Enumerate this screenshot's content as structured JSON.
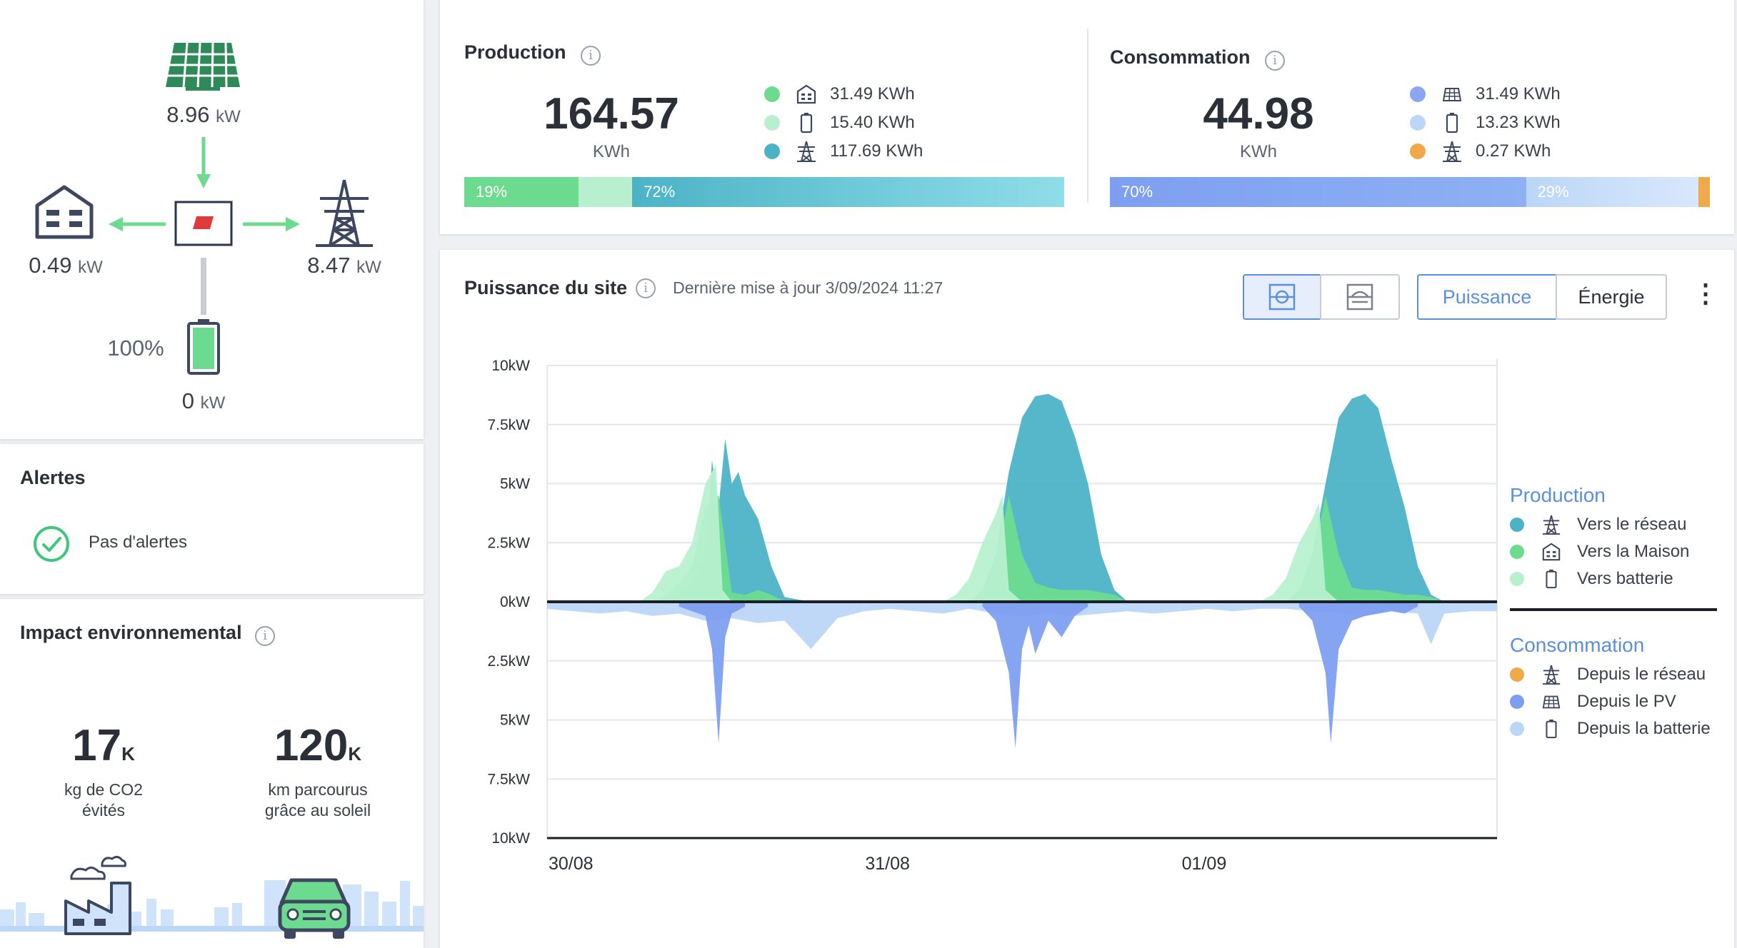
{
  "flow": {
    "solar_value": "8.96",
    "solar_unit": "kW",
    "house_value": "0.49",
    "house_unit": "kW",
    "grid_value": "8.47",
    "grid_unit": "kW",
    "battery_pct": "100%",
    "battery_value": "0",
    "battery_unit": "kW",
    "battery_level": 1.0
  },
  "alerts": {
    "title": "Alertes",
    "status": "Pas d'alertes"
  },
  "impact": {
    "title": "Impact environnemental",
    "info": "i",
    "co2_value": "17",
    "co2_suffix": "K",
    "co2_caption_1": "kg de CO2",
    "co2_caption_2": "évités",
    "km_value": "120",
    "km_suffix": "K",
    "km_caption_1": "km parcourus",
    "km_caption_2": "grâce au soleil"
  },
  "production": {
    "title": "Production",
    "info": "i",
    "total": "164.57",
    "unit": "KWh",
    "items": [
      {
        "value": "31.49 KWh",
        "color": "#6ddb8f",
        "icon": "house-icon"
      },
      {
        "value": "15.40 KWh",
        "color": "#b8f0cf",
        "icon": "battery-icon"
      },
      {
        "value": "117.69 KWh",
        "color": "#4cb3c6",
        "icon": "pylon-icon"
      }
    ],
    "bar": [
      {
        "label": "19%",
        "fraction": 0.19,
        "color": "#6ddb8f"
      },
      {
        "label": "",
        "fraction": 0.09,
        "color": "#b8f0cf"
      },
      {
        "label": "72%",
        "fraction": 0.72,
        "color": "#4cb3c6"
      }
    ]
  },
  "consumption": {
    "title": "Consommation",
    "info": "i",
    "total": "44.98",
    "unit": "KWh",
    "items": [
      {
        "value": "31.49 KWh",
        "color": "#8aa6f0",
        "icon": "solar-panel-icon"
      },
      {
        "value": "13.23 KWh",
        "color": "#bcd6f7",
        "icon": "battery-icon"
      },
      {
        "value": "0.27 KWh",
        "color": "#f0a94a",
        "icon": "pylon-icon"
      }
    ],
    "bar": [
      {
        "label": "70%",
        "fraction": 0.7,
        "color": "#7e9ff0"
      },
      {
        "label": "29%",
        "fraction": 0.29,
        "color": "#bcd6f7"
      },
      {
        "label": "",
        "fraction": 0.01,
        "color": "#f0a94a"
      }
    ]
  },
  "site": {
    "title": "Puissance du site",
    "info": "i",
    "updated": "Dernière mise à jour 3/09/2024 11:27",
    "toggle_power": "Puissance",
    "toggle_energy": "Énergie",
    "more": "⋮"
  },
  "chart_data": {
    "type": "area",
    "y_ticks": [
      "10kW",
      "7.5kW",
      "5kW",
      "2.5kW",
      "0kW",
      "2.5kW",
      "5kW",
      "7.5kW",
      "10kW"
    ],
    "ylim": [
      -10,
      10
    ],
    "x_ticks": [
      "30/08",
      "31/08",
      "01/09"
    ],
    "x_range_hours": [
      0,
      72
    ],
    "grid": true,
    "legend_position": "right",
    "legend_groups": [
      {
        "title": "Production",
        "items": [
          {
            "label": "Vers le réseau",
            "color": "#4cb3c6",
            "icon": "pylon-icon"
          },
          {
            "label": "Vers la Maison",
            "color": "#6ddb8f",
            "icon": "house-icon"
          },
          {
            "label": "Vers batterie",
            "color": "#b8f0cf",
            "icon": "battery-icon"
          }
        ]
      },
      {
        "title": "Consommation",
        "items": [
          {
            "label": "Depuis le réseau",
            "color": "#f0a94a",
            "icon": "pylon-icon"
          },
          {
            "label": "Depuis le PV",
            "color": "#7e9ff0",
            "icon": "solar-panel-icon"
          },
          {
            "label": "Depuis la batterie",
            "color": "#bcd6f7",
            "icon": "battery-icon"
          }
        ]
      }
    ],
    "series": [
      {
        "name": "Vers le réseau",
        "color": "#4cb3c6",
        "x": [
          8,
          9,
          10,
          11,
          12,
          12.5,
          13,
          13.5,
          14,
          14.5,
          15,
          16,
          17,
          18,
          20
        ],
        "y": [
          0,
          0.1,
          0.3,
          0.8,
          2,
          6,
          4,
          6.9,
          5,
          5.5,
          4.5,
          3.5,
          1.5,
          0.2,
          0
        ],
        "x2": [
          32,
          33,
          34,
          35,
          36,
          37,
          38,
          39,
          40,
          41,
          42,
          43,
          44
        ],
        "y2": [
          0,
          0.5,
          2,
          5.5,
          7.8,
          8.7,
          8.8,
          8.5,
          7,
          5,
          2,
          0.5,
          0
        ],
        "x3": [
          56,
          57,
          58,
          59,
          60,
          61,
          62,
          63,
          64,
          65,
          66,
          67,
          68
        ],
        "y3": [
          0,
          0.5,
          2,
          5,
          7.8,
          8.6,
          8.8,
          8.2,
          6,
          4,
          1.5,
          0.3,
          0
        ]
      },
      {
        "name": "Vers la Maison",
        "color": "#6ddb8f",
        "x": [
          8,
          9,
          10,
          11,
          12,
          13,
          14,
          15,
          16,
          17,
          18
        ],
        "y": [
          0,
          0.3,
          0.8,
          1.5,
          4,
          4.5,
          0.4,
          0.3,
          0.5,
          0.3,
          0
        ],
        "x2": [
          32,
          33,
          34,
          35,
          36,
          37,
          38,
          39,
          40,
          41,
          42,
          43,
          44
        ],
        "y2": [
          0,
          0.3,
          1.5,
          4.5,
          2,
          0.8,
          0.6,
          0.5,
          0.5,
          0.5,
          0.4,
          0.3,
          0
        ],
        "x3": [
          56,
          57,
          58,
          59,
          60,
          61,
          62,
          63,
          64,
          65,
          66,
          67,
          68
        ],
        "y3": [
          0,
          0.3,
          1.5,
          4.5,
          2,
          0.6,
          0.5,
          0.5,
          0.4,
          0.3,
          0.3,
          0.2,
          0
        ]
      },
      {
        "name": "Vers batterie",
        "color": "#b8f0cf",
        "x": [
          7,
          8,
          9,
          10,
          11,
          12,
          12.8,
          13.3,
          14
        ],
        "y": [
          0,
          0.4,
          1.3,
          1.5,
          2.5,
          5,
          5.8,
          0.5,
          0
        ],
        "x2": [
          30,
          31,
          32,
          33,
          34,
          34.5,
          35,
          36
        ],
        "y2": [
          0,
          0.3,
          1,
          2.5,
          3.7,
          4.5,
          0.5,
          0
        ],
        "x3": [
          54,
          55,
          56,
          57,
          58,
          58.5,
          59,
          60
        ],
        "y3": [
          0,
          0.3,
          1,
          2.5,
          3.5,
          4.2,
          0.5,
          0
        ]
      },
      {
        "name": "Depuis le PV",
        "color": "#7e9ff0",
        "x": [
          10,
          12,
          12.5,
          13,
          13.5,
          14,
          15
        ],
        "y": [
          -0.2,
          -0.6,
          -2,
          -6,
          -1.5,
          -0.5,
          -0.2
        ],
        "x2": [
          33,
          34,
          35,
          35.5,
          36,
          36.5,
          37,
          38,
          39,
          40,
          41
        ],
        "y2": [
          -0.2,
          -0.8,
          -3,
          -6.2,
          -2,
          -1,
          -2.2,
          -0.8,
          -1.5,
          -0.6,
          -0.2
        ],
        "x3": [
          57,
          58,
          59,
          59.4,
          60,
          61,
          62,
          63,
          64,
          65,
          66
        ],
        "y3": [
          -0.2,
          -0.8,
          -3,
          -6,
          -2,
          -0.8,
          -0.6,
          -0.5,
          -0.4,
          -0.5,
          -0.2
        ]
      },
      {
        "name": "Depuis la batterie",
        "color": "#bcd6f7",
        "x": [
          0,
          2,
          4,
          6,
          8,
          10,
          12,
          14,
          16,
          18,
          20,
          22,
          24
        ],
        "y": [
          -0.3,
          -0.4,
          -0.5,
          -0.4,
          -0.6,
          -0.5,
          -0.8,
          -0.7,
          -0.9,
          -0.8,
          -2,
          -0.7,
          -0.4
        ],
        "x2": [
          24,
          26,
          28,
          30,
          32,
          34,
          36,
          38,
          40,
          42,
          44,
          46,
          48
        ],
        "y2": [
          -0.4,
          -0.3,
          -0.4,
          -0.5,
          -0.3,
          -0.5,
          -0.6,
          -0.5,
          -0.6,
          -0.5,
          -0.4,
          -0.5,
          -0.4
        ],
        "x3": [
          48,
          50,
          52,
          54,
          56,
          58,
          60,
          62,
          64,
          66,
          67,
          68,
          70,
          72
        ],
        "y3": [
          -0.4,
          -0.3,
          -0.4,
          -0.3,
          -0.3,
          -0.4,
          -0.5,
          -0.6,
          -0.4,
          -0.5,
          -1.8,
          -0.5,
          -0.4,
          -0.4
        ]
      }
    ]
  }
}
